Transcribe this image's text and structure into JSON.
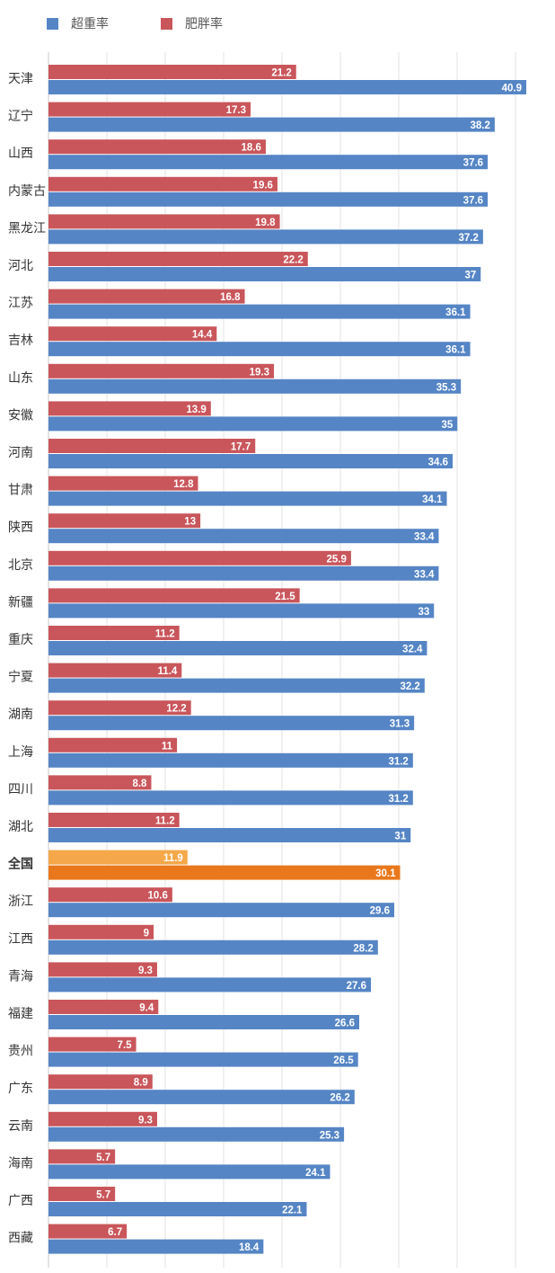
{
  "chart_data": {
    "type": "bar",
    "orientation": "horizontal",
    "categories": [
      "天津",
      "辽宁",
      "山西",
      "内蒙古",
      "黑龙江",
      "河北",
      "江苏",
      "吉林",
      "山东",
      "安徽",
      "河南",
      "甘肃",
      "陕西",
      "北京",
      "新疆",
      "重庆",
      "宁夏",
      "湖南",
      "上海",
      "四川",
      "湖北",
      "全国",
      "浙江",
      "江西",
      "青海",
      "福建",
      "贵州",
      "广东",
      "云南",
      "海南",
      "广西",
      "西藏"
    ],
    "series": [
      {
        "name": "肥胖率",
        "color": "#c9565b",
        "values": [
          21.2,
          17.3,
          18.6,
          19.6,
          19.8,
          22.2,
          16.8,
          14.4,
          19.3,
          13.9,
          17.7,
          12.8,
          13,
          25.9,
          21.5,
          11.2,
          11.4,
          12.2,
          11,
          8.8,
          11.2,
          11.9,
          10.6,
          9,
          9.3,
          9.4,
          7.5,
          8.9,
          9.3,
          5.7,
          5.7,
          6.7
        ]
      },
      {
        "name": "超重率",
        "color": "#5585c5",
        "values": [
          40.9,
          38.2,
          37.6,
          37.6,
          37.2,
          37,
          36.1,
          36.1,
          35.3,
          35,
          34.6,
          34.1,
          33.4,
          33.4,
          33,
          32.4,
          32.2,
          31.3,
          31.2,
          31.2,
          31,
          30.1,
          29.6,
          28.2,
          27.6,
          26.6,
          26.5,
          26.2,
          25.3,
          24.1,
          22.1,
          18.4
        ]
      }
    ],
    "highlight": {
      "category": "全国",
      "colors": [
        "#f5a84a",
        "#e9781c"
      ]
    },
    "xlim": [
      0,
      40.9
    ],
    "grid": true,
    "legend": "top-left"
  },
  "legend": [
    {
      "label": "超重率",
      "color": "#5585c5"
    },
    {
      "label": "肥胖率",
      "color": "#c9565b"
    }
  ]
}
